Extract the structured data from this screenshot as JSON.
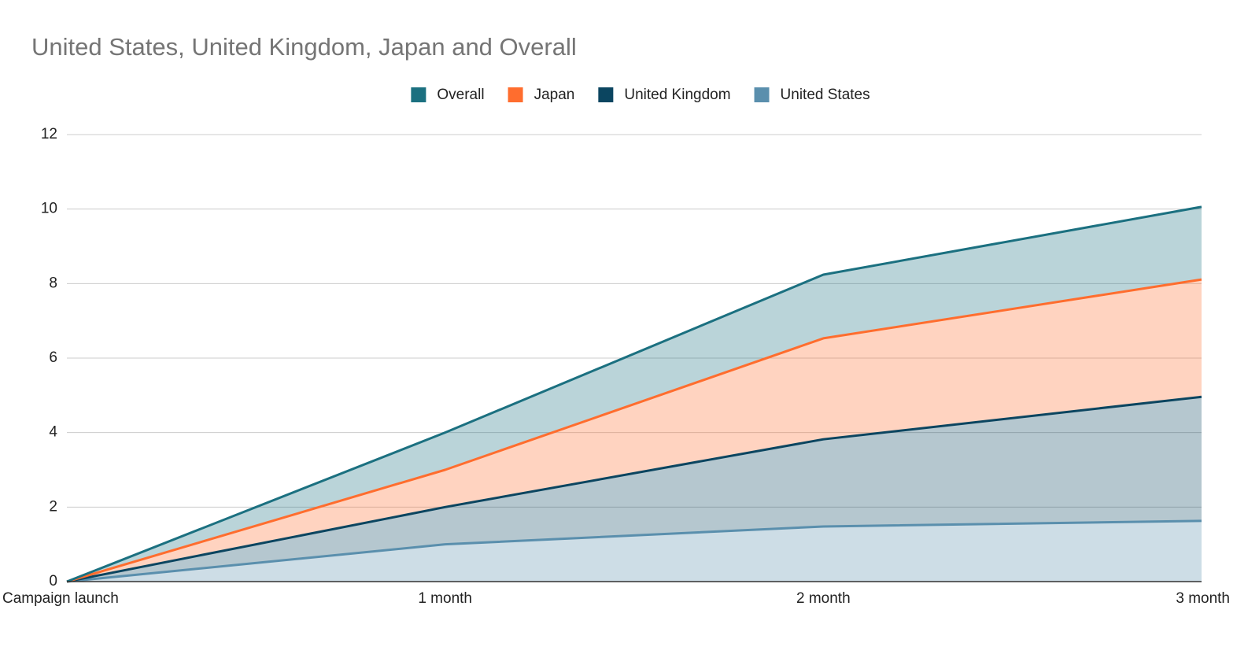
{
  "chart_data": {
    "type": "area",
    "stacked": true,
    "title": "United States, United Kingdom, Japan and Overall",
    "categories": [
      "Campaign launch",
      "1 month",
      "2 month",
      "3 month"
    ],
    "series": [
      {
        "name": "Overall",
        "color": "#1b7080",
        "values": [
          0,
          1,
          1.71,
          1.95
        ]
      },
      {
        "name": "Japan",
        "color": "#ff6d2e",
        "values": [
          0,
          1,
          2.71,
          3.15
        ]
      },
      {
        "name": "United Kingdom",
        "color": "#0b4560",
        "values": [
          0,
          1,
          2.34,
          3.33
        ]
      },
      {
        "name": "United States",
        "color": "#5a8fad",
        "values": [
          0,
          1,
          1.48,
          1.63
        ]
      }
    ],
    "ylim": [
      0,
      12
    ],
    "yticks": [
      0,
      2,
      4,
      6,
      8,
      10,
      12
    ],
    "grid": true,
    "legend": "top"
  }
}
